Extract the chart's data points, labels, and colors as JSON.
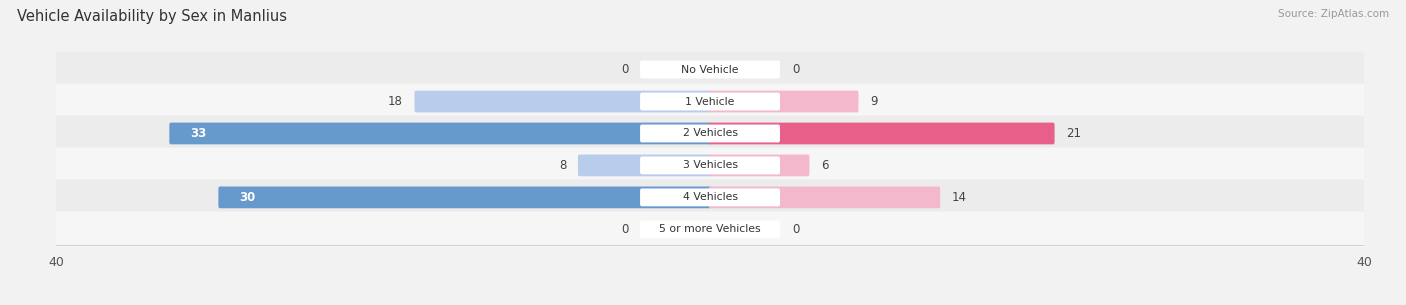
{
  "title": "Vehicle Availability by Sex in Manlius",
  "source": "Source: ZipAtlas.com",
  "categories": [
    "No Vehicle",
    "1 Vehicle",
    "2 Vehicles",
    "3 Vehicles",
    "4 Vehicles",
    "5 or more Vehicles"
  ],
  "male_values": [
    0,
    18,
    33,
    8,
    30,
    0
  ],
  "female_values": [
    0,
    9,
    21,
    6,
    14,
    0
  ],
  "male_color_light": "#b8ccec",
  "male_color_dark": "#6699cc",
  "female_color_light": "#f4b8cc",
  "female_color_dark": "#e8608a",
  "xlim": 40,
  "bg_color": "#f2f2f2",
  "row_colors": [
    "#ececec",
    "#f6f6f6",
    "#ececec",
    "#f6f6f6",
    "#ececec",
    "#f6f6f6"
  ]
}
